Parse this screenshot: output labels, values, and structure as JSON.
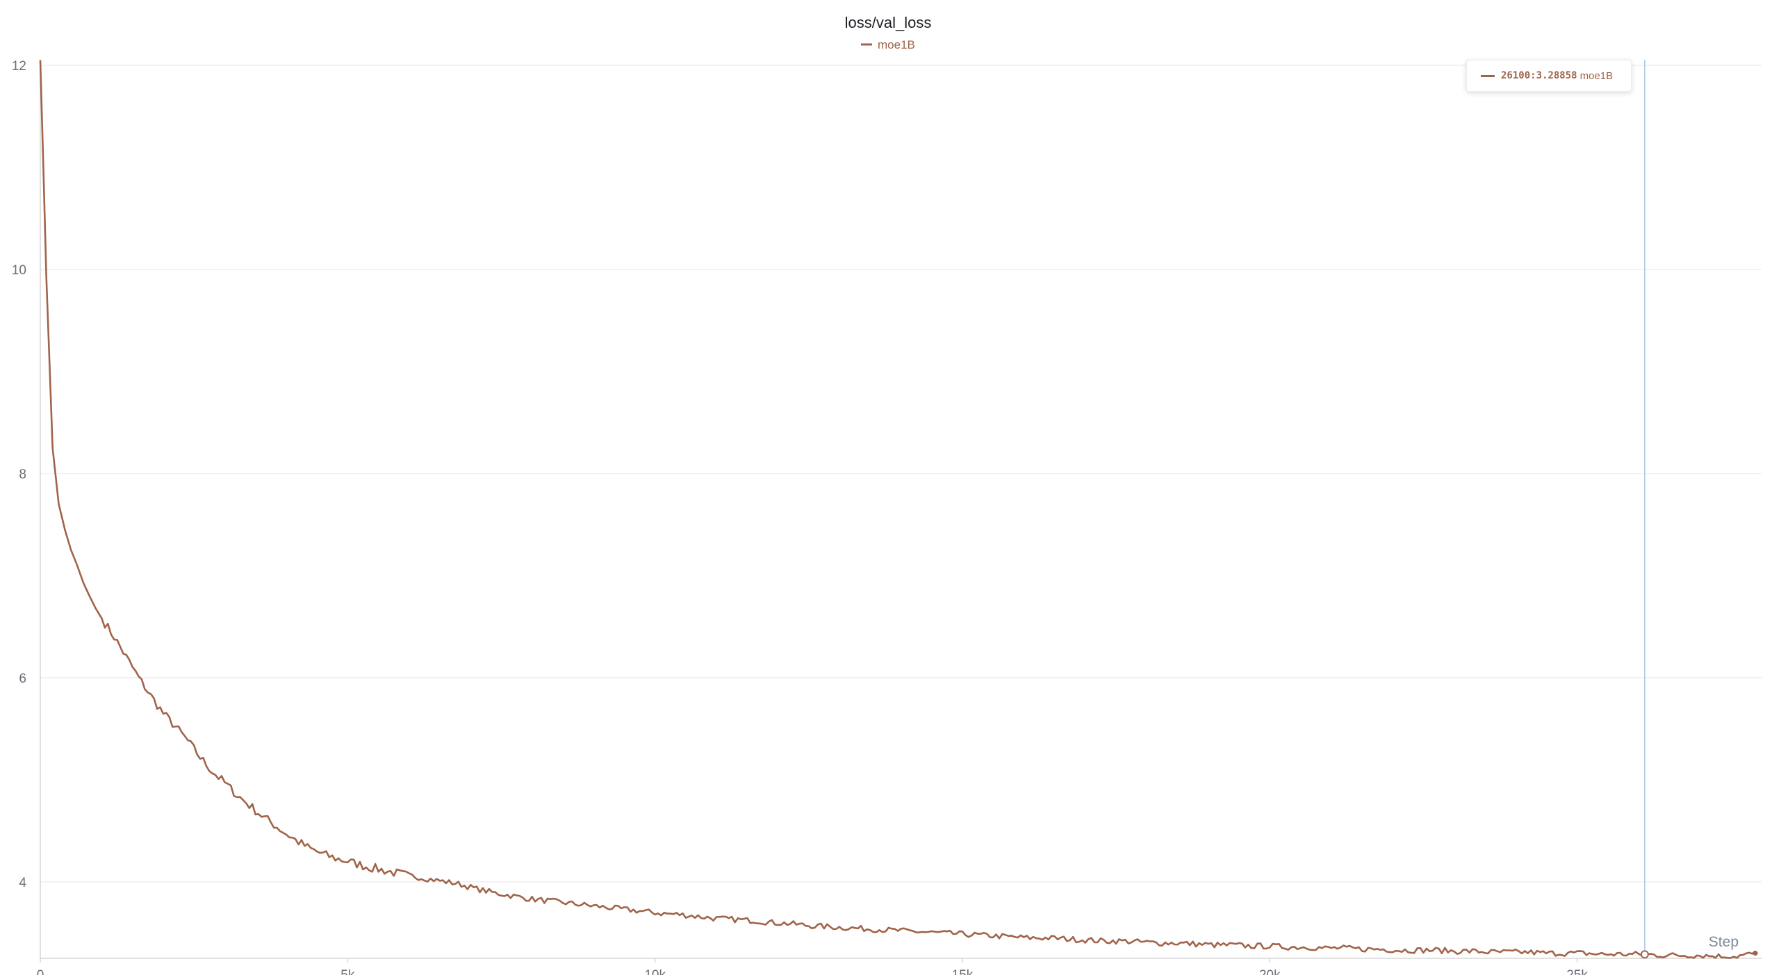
{
  "colors": {
    "series": "#a0644a",
    "hover_line": "#9ec3e3",
    "grid": "#efefef",
    "axis": "#d6d6d6"
  },
  "tooltip": {
    "step": "26100",
    "separator": ":",
    "value": "3.28858",
    "run": "moe1B"
  },
  "chart_data": {
    "type": "line",
    "title": "loss/val_loss",
    "xlabel": "Step",
    "ylabel": "",
    "legend": {
      "position": "top-center",
      "entries": [
        "moe1B"
      ]
    },
    "grid": "horizontal",
    "xlim": [
      0,
      28000
    ],
    "ylim": [
      3.25,
      12
    ],
    "x_ticks": [
      0,
      5000,
      10000,
      15000,
      20000,
      25000
    ],
    "x_tick_labels": [
      "0",
      "5k",
      "10k",
      "15k",
      "20k",
      "25k"
    ],
    "y_ticks": [
      4,
      6,
      8,
      10,
      12
    ],
    "y_tick_labels": [
      "4",
      "6",
      "8",
      "10",
      "12"
    ],
    "hover": {
      "x": 26100,
      "y": 3.28858
    },
    "series": [
      {
        "name": "moe1B",
        "color": "#a0644a",
        "x": [
          0,
          50,
          100,
          200,
          300,
          400,
          500,
          600,
          700,
          800,
          900,
          1000,
          1200,
          1400,
          1600,
          1800,
          2000,
          2200,
          2400,
          2600,
          2800,
          3000,
          3200,
          3400,
          3600,
          3800,
          4000,
          4200,
          4400,
          4600,
          4800,
          5000,
          5300,
          5600,
          5900,
          6200,
          6500,
          6800,
          7100,
          7400,
          7700,
          8000,
          8300,
          8600,
          8900,
          9200,
          9500,
          9800,
          10100,
          10400,
          10700,
          11000,
          11300,
          11600,
          11900,
          12200,
          12500,
          12800,
          13100,
          13400,
          13700,
          14000,
          14300,
          14600,
          14900,
          15200,
          15500,
          15800,
          16100,
          16400,
          16700,
          17000,
          17300,
          17600,
          17900,
          18200,
          18500,
          18800,
          19100,
          19400,
          19700,
          20000,
          20300,
          20600,
          20900,
          21200,
          21500,
          21800,
          22100,
          22400,
          22700,
          23000,
          23300,
          23600,
          23900,
          24200,
          24500,
          24800,
          25100,
          25400,
          25700,
          26000,
          26100,
          26400,
          26700,
          27000,
          27300,
          27600,
          27900
        ],
        "y": [
          12.05,
          11.0,
          9.9,
          8.25,
          7.7,
          7.45,
          7.25,
          7.1,
          6.93,
          6.8,
          6.68,
          6.58,
          6.4,
          6.2,
          6.0,
          5.82,
          5.65,
          5.52,
          5.38,
          5.22,
          5.08,
          4.97,
          4.85,
          4.75,
          4.65,
          4.56,
          4.47,
          4.39,
          4.32,
          4.27,
          4.23,
          4.2,
          4.15,
          4.11,
          4.07,
          4.04,
          4.01,
          3.98,
          3.93,
          3.89,
          3.86,
          3.83,
          3.81,
          3.79,
          3.77,
          3.75,
          3.73,
          3.71,
          3.69,
          3.68,
          3.66,
          3.64,
          3.63,
          3.62,
          3.6,
          3.59,
          3.57,
          3.56,
          3.55,
          3.54,
          3.53,
          3.52,
          3.51,
          3.5,
          3.49,
          3.48,
          3.47,
          3.46,
          3.45,
          3.45,
          3.44,
          3.43,
          3.42,
          3.42,
          3.41,
          3.4,
          3.4,
          3.39,
          3.38,
          3.38,
          3.37,
          3.37,
          3.36,
          3.36,
          3.35,
          3.35,
          3.34,
          3.34,
          3.33,
          3.33,
          3.33,
          3.32,
          3.32,
          3.31,
          3.31,
          3.31,
          3.3,
          3.3,
          3.3,
          3.29,
          3.29,
          3.29,
          3.28858,
          3.28,
          3.28,
          3.28,
          3.27,
          3.27,
          3.3
        ]
      }
    ]
  }
}
